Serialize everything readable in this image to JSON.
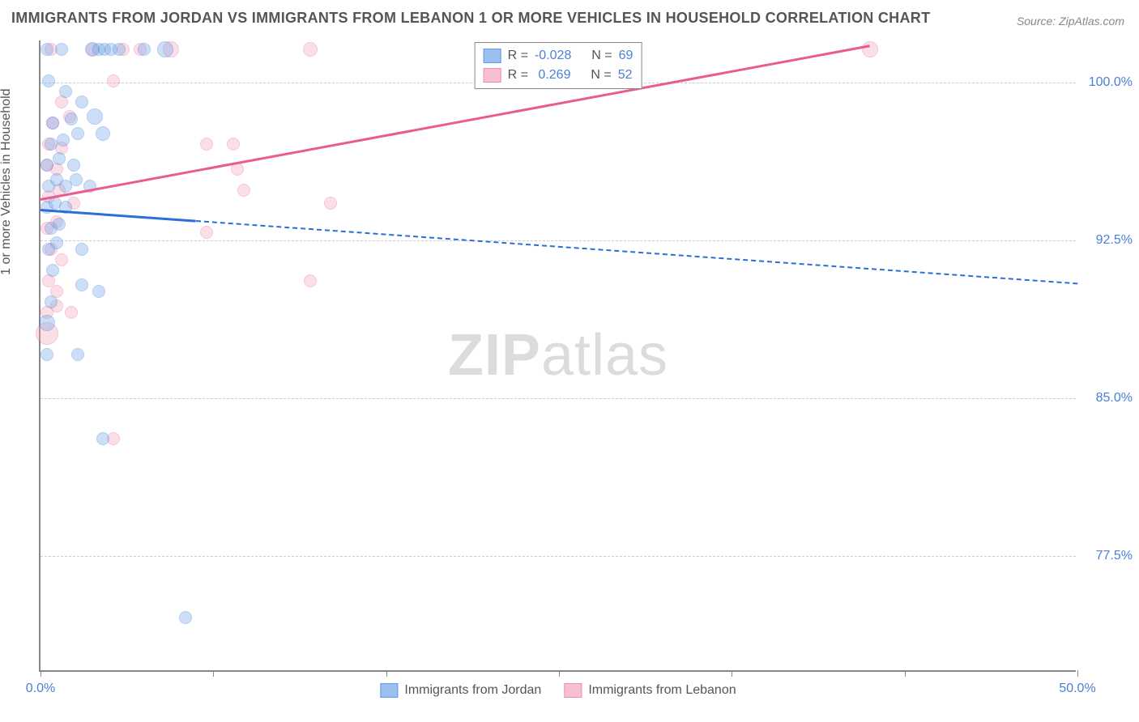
{
  "title": "IMMIGRANTS FROM JORDAN VS IMMIGRANTS FROM LEBANON 1 OR MORE VEHICLES IN HOUSEHOLD CORRELATION CHART",
  "source": "Source: ZipAtlas.com",
  "y_axis_label": "1 or more Vehicles in Household",
  "watermark_a": "ZIP",
  "watermark_b": "atlas",
  "chart": {
    "type": "scatter",
    "xlim": [
      0,
      50
    ],
    "ylim": [
      72,
      102
    ],
    "x_ticks": [
      0,
      8.33,
      16.67,
      25,
      33.33,
      41.67,
      50
    ],
    "x_tick_labels": {
      "0": "0.0%",
      "50": "50.0%"
    },
    "y_ticks": [
      77.5,
      85.0,
      92.5,
      100.0
    ],
    "y_tick_labels": [
      "77.5%",
      "85.0%",
      "92.5%",
      "100.0%"
    ],
    "background_color": "#ffffff",
    "grid_color": "#cccccc",
    "axis_color": "#888888",
    "marker_opacity": 0.35,
    "marker_border_opacity": 0.8
  },
  "series": {
    "jordan": {
      "label": "Immigrants from Jordan",
      "color_fill": "#6ea6e8",
      "color_stroke": "#2a6fd6",
      "R": "-0.028",
      "N": "69",
      "trend": {
        "x1": 0,
        "y1": 94.0,
        "x2": 50,
        "y2": 90.5,
        "solid_until_x": 7.5
      },
      "points": [
        {
          "x": 0.3,
          "y": 101.5,
          "r": 8
        },
        {
          "x": 1.0,
          "y": 101.5,
          "r": 8
        },
        {
          "x": 2.5,
          "y": 101.5,
          "r": 9
        },
        {
          "x": 2.8,
          "y": 101.5,
          "r": 8
        },
        {
          "x": 3.1,
          "y": 101.5,
          "r": 8
        },
        {
          "x": 3.4,
          "y": 101.5,
          "r": 8
        },
        {
          "x": 3.8,
          "y": 101.5,
          "r": 8
        },
        {
          "x": 5.0,
          "y": 101.5,
          "r": 8
        },
        {
          "x": 6.0,
          "y": 101.5,
          "r": 10
        },
        {
          "x": 0.4,
          "y": 100.0,
          "r": 8
        },
        {
          "x": 1.2,
          "y": 99.5,
          "r": 8
        },
        {
          "x": 2.0,
          "y": 99.0,
          "r": 8
        },
        {
          "x": 0.6,
          "y": 98.0,
          "r": 8
        },
        {
          "x": 1.5,
          "y": 98.2,
          "r": 8
        },
        {
          "x": 2.6,
          "y": 98.3,
          "r": 10
        },
        {
          "x": 0.5,
          "y": 97.0,
          "r": 8
        },
        {
          "x": 1.1,
          "y": 97.2,
          "r": 8
        },
        {
          "x": 1.8,
          "y": 97.5,
          "r": 8
        },
        {
          "x": 3.0,
          "y": 97.5,
          "r": 9
        },
        {
          "x": 0.3,
          "y": 96.0,
          "r": 8
        },
        {
          "x": 0.9,
          "y": 96.3,
          "r": 8
        },
        {
          "x": 1.6,
          "y": 96.0,
          "r": 8
        },
        {
          "x": 0.4,
          "y": 95.0,
          "r": 8
        },
        {
          "x": 0.8,
          "y": 95.3,
          "r": 8
        },
        {
          "x": 1.2,
          "y": 95.0,
          "r": 8
        },
        {
          "x": 1.7,
          "y": 95.3,
          "r": 8
        },
        {
          "x": 2.4,
          "y": 95.0,
          "r": 8
        },
        {
          "x": 0.3,
          "y": 94.0,
          "r": 8
        },
        {
          "x": 0.7,
          "y": 94.2,
          "r": 8
        },
        {
          "x": 1.2,
          "y": 94.0,
          "r": 8
        },
        {
          "x": 0.5,
          "y": 93.0,
          "r": 8
        },
        {
          "x": 0.9,
          "y": 93.2,
          "r": 8
        },
        {
          "x": 0.4,
          "y": 92.0,
          "r": 8
        },
        {
          "x": 0.8,
          "y": 92.3,
          "r": 8
        },
        {
          "x": 2.0,
          "y": 92.0,
          "r": 8
        },
        {
          "x": 0.6,
          "y": 91.0,
          "r": 8
        },
        {
          "x": 2.0,
          "y": 90.3,
          "r": 8
        },
        {
          "x": 2.8,
          "y": 90.0,
          "r": 8
        },
        {
          "x": 0.5,
          "y": 89.5,
          "r": 8
        },
        {
          "x": 0.3,
          "y": 88.5,
          "r": 10
        },
        {
          "x": 0.3,
          "y": 87.0,
          "r": 8
        },
        {
          "x": 1.8,
          "y": 87.0,
          "r": 8
        },
        {
          "x": 3.0,
          "y": 83.0,
          "r": 8
        },
        {
          "x": 7.0,
          "y": 74.5,
          "r": 8
        }
      ]
    },
    "lebanon": {
      "label": "Immigrants from Lebanon",
      "color_fill": "#f4a6bd",
      "color_stroke": "#e85c8f",
      "R": "0.269",
      "N": "52",
      "trend": {
        "x1": 0,
        "y1": 94.5,
        "x2": 40,
        "y2": 101.8,
        "solid_until_x": 40
      },
      "points": [
        {
          "x": 0.5,
          "y": 101.5,
          "r": 8
        },
        {
          "x": 2.5,
          "y": 101.5,
          "r": 8
        },
        {
          "x": 4.0,
          "y": 101.5,
          "r": 8
        },
        {
          "x": 4.8,
          "y": 101.5,
          "r": 8
        },
        {
          "x": 6.3,
          "y": 101.5,
          "r": 10
        },
        {
          "x": 13.0,
          "y": 101.5,
          "r": 9
        },
        {
          "x": 40.0,
          "y": 101.5,
          "r": 10
        },
        {
          "x": 3.5,
          "y": 100.0,
          "r": 8
        },
        {
          "x": 1.0,
          "y": 99.0,
          "r": 8
        },
        {
          "x": 0.6,
          "y": 98.0,
          "r": 8
        },
        {
          "x": 1.4,
          "y": 98.3,
          "r": 8
        },
        {
          "x": 0.4,
          "y": 97.0,
          "r": 8
        },
        {
          "x": 1.0,
          "y": 96.8,
          "r": 8
        },
        {
          "x": 8.0,
          "y": 97.0,
          "r": 8
        },
        {
          "x": 9.3,
          "y": 97.0,
          "r": 8
        },
        {
          "x": 0.3,
          "y": 96.0,
          "r": 8
        },
        {
          "x": 0.8,
          "y": 95.8,
          "r": 8
        },
        {
          "x": 9.5,
          "y": 95.8,
          "r": 8
        },
        {
          "x": 0.4,
          "y": 94.5,
          "r": 8
        },
        {
          "x": 0.9,
          "y": 94.8,
          "r": 8
        },
        {
          "x": 1.6,
          "y": 94.2,
          "r": 8
        },
        {
          "x": 9.8,
          "y": 94.8,
          "r": 8
        },
        {
          "x": 14.0,
          "y": 94.2,
          "r": 8
        },
        {
          "x": 0.3,
          "y": 93.0,
          "r": 8
        },
        {
          "x": 0.8,
          "y": 93.3,
          "r": 8
        },
        {
          "x": 8.0,
          "y": 92.8,
          "r": 8
        },
        {
          "x": 0.5,
          "y": 92.0,
          "r": 8
        },
        {
          "x": 1.0,
          "y": 91.5,
          "r": 8
        },
        {
          "x": 0.4,
          "y": 90.5,
          "r": 8
        },
        {
          "x": 0.8,
          "y": 90.0,
          "r": 8
        },
        {
          "x": 13.0,
          "y": 90.5,
          "r": 8
        },
        {
          "x": 0.3,
          "y": 89.0,
          "r": 8
        },
        {
          "x": 0.8,
          "y": 89.3,
          "r": 8
        },
        {
          "x": 1.5,
          "y": 89.0,
          "r": 8
        },
        {
          "x": 0.3,
          "y": 88.0,
          "r": 14
        },
        {
          "x": 3.5,
          "y": 83.0,
          "r": 8
        }
      ]
    }
  },
  "legend_box": {
    "r_label": "R =",
    "n_label": "N ="
  }
}
